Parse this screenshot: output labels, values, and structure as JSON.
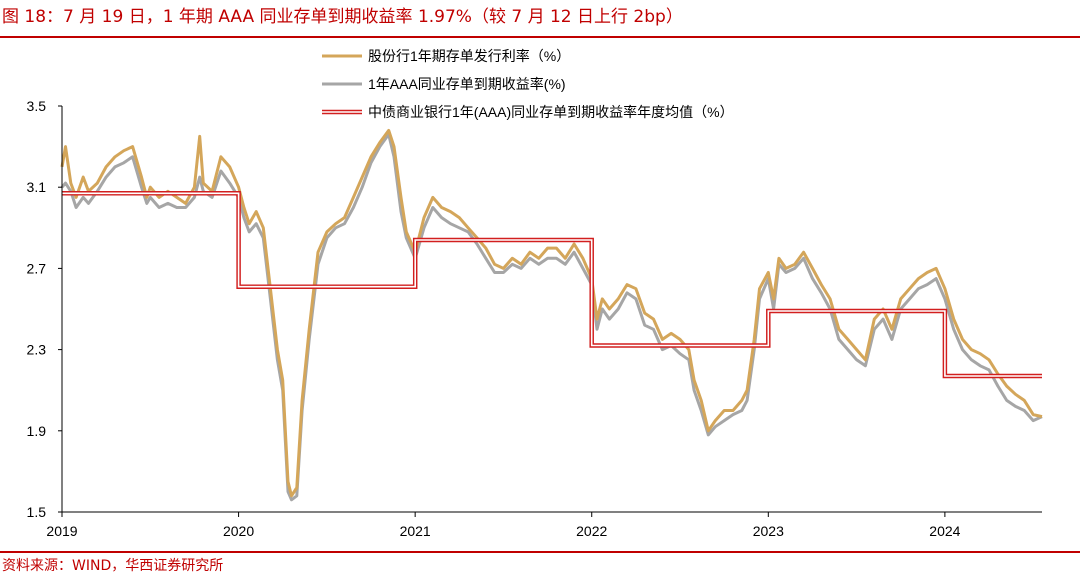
{
  "header": {
    "title": "图 18：7 月 19 日，1 年期 AAA 同业存单到期收益率 1.97%（较 7 月 12 日上行 2bp）"
  },
  "footer": {
    "source": "资料来源：WIND，华西证券研究所"
  },
  "colors": {
    "title": "#c00000",
    "series_stock": "#d4a65a",
    "series_cd": "#a6a6a6",
    "series_avg": "#d21f1f",
    "axis": "#000000"
  },
  "chart_data": {
    "type": "line",
    "title": "",
    "xlabel": "",
    "ylabel": "",
    "ylim": [
      1.5,
      3.5
    ],
    "yticks": [
      1.5,
      1.9,
      2.3,
      2.7,
      3.1,
      3.5
    ],
    "ytick_labels": [
      "1.5",
      "1.9",
      "2.3",
      "2.7",
      "3.1",
      "3.5"
    ],
    "xlim": [
      2019.0,
      2024.55
    ],
    "xticks": [
      2019,
      2020,
      2021,
      2022,
      2023,
      2024
    ],
    "xtick_labels": [
      "2019",
      "2020",
      "2021",
      "2022",
      "2023",
      "2024"
    ],
    "legend_position": "top-center",
    "series": [
      {
        "name": "股份行1年期存单发行利率（%）",
        "style": "line",
        "color": "#d4a65a",
        "x": [
          2019.0,
          2019.02,
          2019.05,
          2019.08,
          2019.12,
          2019.15,
          2019.2,
          2019.25,
          2019.3,
          2019.35,
          2019.4,
          2019.45,
          2019.48,
          2019.5,
          2019.55,
          2019.6,
          2019.65,
          2019.7,
          2019.75,
          2019.78,
          2019.8,
          2019.85,
          2019.9,
          2019.95,
          2020.0,
          2020.03,
          2020.06,
          2020.1,
          2020.14,
          2020.18,
          2020.22,
          2020.25,
          2020.28,
          2020.3,
          2020.33,
          2020.36,
          2020.4,
          2020.45,
          2020.5,
          2020.55,
          2020.6,
          2020.65,
          2020.7,
          2020.75,
          2020.8,
          2020.85,
          2020.88,
          2020.92,
          2020.95,
          2021.0,
          2021.05,
          2021.1,
          2021.15,
          2021.2,
          2021.25,
          2021.3,
          2021.35,
          2021.4,
          2021.45,
          2021.5,
          2021.55,
          2021.6,
          2021.65,
          2021.7,
          2021.75,
          2021.8,
          2021.85,
          2021.9,
          2021.95,
          2022.0,
          2022.03,
          2022.06,
          2022.1,
          2022.15,
          2022.2,
          2022.25,
          2022.3,
          2022.35,
          2022.4,
          2022.45,
          2022.5,
          2022.55,
          2022.58,
          2022.62,
          2022.66,
          2022.7,
          2022.75,
          2022.8,
          2022.85,
          2022.88,
          2022.92,
          2022.95,
          2023.0,
          2023.03,
          2023.06,
          2023.1,
          2023.15,
          2023.2,
          2023.25,
          2023.3,
          2023.35,
          2023.4,
          2023.45,
          2023.5,
          2023.55,
          2023.6,
          2023.65,
          2023.7,
          2023.75,
          2023.8,
          2023.85,
          2023.9,
          2023.95,
          2024.0,
          2024.05,
          2024.1,
          2024.15,
          2024.2,
          2024.25,
          2024.3,
          2024.35,
          2024.4,
          2024.45,
          2024.5,
          2024.55
        ],
        "values": [
          3.2,
          3.3,
          3.12,
          3.05,
          3.15,
          3.08,
          3.12,
          3.2,
          3.25,
          3.28,
          3.3,
          3.15,
          3.05,
          3.1,
          3.05,
          3.08,
          3.05,
          3.02,
          3.1,
          3.35,
          3.12,
          3.08,
          3.25,
          3.2,
          3.1,
          3.0,
          2.92,
          2.98,
          2.9,
          2.6,
          2.3,
          2.15,
          1.65,
          1.58,
          1.62,
          2.05,
          2.4,
          2.78,
          2.88,
          2.92,
          2.95,
          3.05,
          3.15,
          3.25,
          3.32,
          3.38,
          3.3,
          3.05,
          2.88,
          2.78,
          2.95,
          3.05,
          3.0,
          2.98,
          2.95,
          2.9,
          2.85,
          2.8,
          2.72,
          2.7,
          2.75,
          2.72,
          2.78,
          2.75,
          2.8,
          2.8,
          2.75,
          2.82,
          2.75,
          2.65,
          2.45,
          2.55,
          2.5,
          2.55,
          2.62,
          2.6,
          2.48,
          2.45,
          2.35,
          2.38,
          2.35,
          2.3,
          2.15,
          2.05,
          1.9,
          1.95,
          2.0,
          2.0,
          2.05,
          2.1,
          2.35,
          2.6,
          2.68,
          2.55,
          2.75,
          2.7,
          2.72,
          2.78,
          2.7,
          2.62,
          2.55,
          2.4,
          2.35,
          2.3,
          2.25,
          2.45,
          2.5,
          2.4,
          2.55,
          2.6,
          2.65,
          2.68,
          2.7,
          2.6,
          2.45,
          2.35,
          2.3,
          2.28,
          2.25,
          2.18,
          2.12,
          2.08,
          2.05,
          1.98,
          1.97
        ]
      },
      {
        "name": "1年AAA同业存单到期收益率(%)",
        "style": "line",
        "color": "#a6a6a6",
        "x": [
          2019.0,
          2019.02,
          2019.05,
          2019.08,
          2019.12,
          2019.15,
          2019.2,
          2019.25,
          2019.3,
          2019.35,
          2019.4,
          2019.45,
          2019.48,
          2019.5,
          2019.55,
          2019.6,
          2019.65,
          2019.7,
          2019.75,
          2019.78,
          2019.8,
          2019.85,
          2019.9,
          2019.95,
          2020.0,
          2020.03,
          2020.06,
          2020.1,
          2020.14,
          2020.18,
          2020.22,
          2020.25,
          2020.28,
          2020.3,
          2020.33,
          2020.36,
          2020.4,
          2020.45,
          2020.5,
          2020.55,
          2020.6,
          2020.65,
          2020.7,
          2020.75,
          2020.8,
          2020.85,
          2020.88,
          2020.92,
          2020.95,
          2021.0,
          2021.05,
          2021.1,
          2021.15,
          2021.2,
          2021.25,
          2021.3,
          2021.35,
          2021.4,
          2021.45,
          2021.5,
          2021.55,
          2021.6,
          2021.65,
          2021.7,
          2021.75,
          2021.8,
          2021.85,
          2021.9,
          2021.95,
          2022.0,
          2022.03,
          2022.06,
          2022.1,
          2022.15,
          2022.2,
          2022.25,
          2022.3,
          2022.35,
          2022.4,
          2022.45,
          2022.5,
          2022.55,
          2022.58,
          2022.62,
          2022.66,
          2022.7,
          2022.75,
          2022.8,
          2022.85,
          2022.88,
          2022.92,
          2022.95,
          2023.0,
          2023.03,
          2023.06,
          2023.1,
          2023.15,
          2023.2,
          2023.25,
          2023.3,
          2023.35,
          2023.4,
          2023.45,
          2023.5,
          2023.55,
          2023.6,
          2023.65,
          2023.7,
          2023.75,
          2023.8,
          2023.85,
          2023.9,
          2023.95,
          2024.0,
          2024.05,
          2024.1,
          2024.15,
          2024.2,
          2024.25,
          2024.3,
          2024.35,
          2024.4,
          2024.45,
          2024.5,
          2024.55
        ],
        "values": [
          3.1,
          3.12,
          3.08,
          3.0,
          3.05,
          3.02,
          3.08,
          3.15,
          3.2,
          3.22,
          3.25,
          3.1,
          3.02,
          3.05,
          3.0,
          3.02,
          3.0,
          3.0,
          3.05,
          3.15,
          3.08,
          3.05,
          3.18,
          3.12,
          3.05,
          2.95,
          2.88,
          2.92,
          2.85,
          2.55,
          2.25,
          2.1,
          1.6,
          1.56,
          1.58,
          2.0,
          2.35,
          2.72,
          2.85,
          2.9,
          2.92,
          3.0,
          3.1,
          3.22,
          3.3,
          3.36,
          3.25,
          2.98,
          2.85,
          2.75,
          2.9,
          3.0,
          2.95,
          2.92,
          2.9,
          2.88,
          2.82,
          2.75,
          2.68,
          2.68,
          2.72,
          2.7,
          2.75,
          2.72,
          2.75,
          2.75,
          2.72,
          2.78,
          2.7,
          2.62,
          2.4,
          2.5,
          2.45,
          2.5,
          2.58,
          2.55,
          2.42,
          2.4,
          2.3,
          2.32,
          2.28,
          2.25,
          2.1,
          2.0,
          1.88,
          1.92,
          1.95,
          1.98,
          2.0,
          2.05,
          2.3,
          2.55,
          2.65,
          2.5,
          2.72,
          2.68,
          2.7,
          2.75,
          2.65,
          2.58,
          2.5,
          2.35,
          2.3,
          2.25,
          2.22,
          2.4,
          2.45,
          2.35,
          2.5,
          2.55,
          2.6,
          2.62,
          2.65,
          2.55,
          2.4,
          2.3,
          2.25,
          2.22,
          2.2,
          2.12,
          2.05,
          2.02,
          2.0,
          1.95,
          1.97
        ]
      },
      {
        "name": "中债商业银行1年(AAA)同业存单到期收益率年度均值（%）",
        "style": "step",
        "color": "#d21f1f",
        "x": [
          2019.0,
          2020.0,
          2020.0,
          2021.0,
          2021.0,
          2022.0,
          2022.0,
          2023.0,
          2023.0,
          2024.0,
          2024.0,
          2024.55
        ],
        "values": [
          3.07,
          3.07,
          2.61,
          2.61,
          2.84,
          2.84,
          2.32,
          2.32,
          2.49,
          2.49,
          2.17,
          2.17
        ]
      }
    ]
  }
}
